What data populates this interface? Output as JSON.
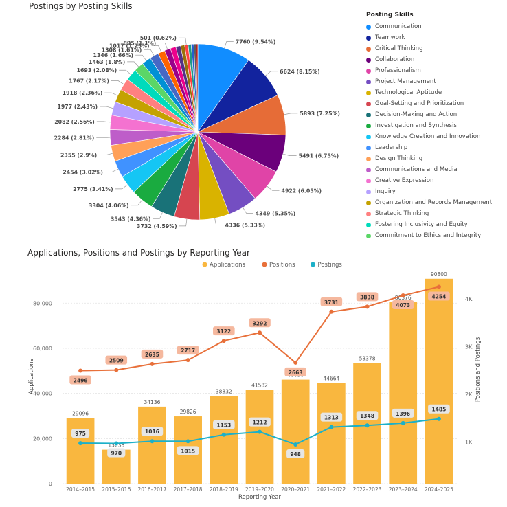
{
  "pie_title": "Postings by Posting Skills",
  "combo_title": "Applications, Positions and Postings by Reporting Year",
  "legend_title": "Posting Skills",
  "chart_data": [
    {
      "type": "pie",
      "title": "Postings by Posting Skills",
      "legend_title": "Posting Skills",
      "slices": [
        {
          "label": "Communication",
          "value": 7760,
          "display": "7760 (9.54%)",
          "color": "#118DFF"
        },
        {
          "label": "Teamwork",
          "value": 6624,
          "display": "6624 (8.15%)",
          "color": "#12239E"
        },
        {
          "label": "Critical Thinking",
          "value": 5893,
          "display": "5893 (7.25%)",
          "color": "#E66C37"
        },
        {
          "label": "Collaboration",
          "value": 5491,
          "display": "5491 (6.75%)",
          "color": "#6B007B"
        },
        {
          "label": "Professionalism",
          "value": 4922,
          "display": "4922 (6.05%)",
          "color": "#E044A7"
        },
        {
          "label": "Project Management",
          "value": 4349,
          "display": "4349 (5.35%)",
          "color": "#744EC2"
        },
        {
          "label": "Technological Aptitude",
          "value": 4336,
          "display": "4336 (5.33%)",
          "color": "#D9B300"
        },
        {
          "label": "Goal-Setting and Prioritization",
          "value": 3732,
          "display": "3732 (4.59%)",
          "color": "#D64550"
        },
        {
          "label": "Decision-Making and Action",
          "value": 3543,
          "display": "3543 (4.36%)",
          "color": "#197278"
        },
        {
          "label": "Investigation and Synthesis",
          "value": 3304,
          "display": "3304 (4.06%)",
          "color": "#1AAB40"
        },
        {
          "label": "Knowledge Creation and Innovation",
          "value": 2775,
          "display": "2775 (3.41%)",
          "color": "#15C6F4"
        },
        {
          "label": "Leadership",
          "value": 2454,
          "display": "2454 (3.02%)",
          "color": "#4092FF"
        },
        {
          "label": "Design Thinking",
          "value": 2355,
          "display": "2355 (2.9%)",
          "color": "#FFA058"
        },
        {
          "label": "Communications and Media",
          "value": 2284,
          "display": "2284 (2.81%)",
          "color": "#BE5DC9"
        },
        {
          "label": "Creative Expression",
          "value": 2082,
          "display": "2082 (2.56%)",
          "color": "#F472D0"
        },
        {
          "label": "Inquiry",
          "value": 1977,
          "display": "1977 (2.43%)",
          "color": "#B5A1FF"
        },
        {
          "label": "Organization and Records Management",
          "value": 1918,
          "display": "1918 (2.36%)",
          "color": "#C4A200"
        },
        {
          "label": "Strategic Thinking",
          "value": 1767,
          "display": "1767 (2.17%)",
          "color": "#FF8080"
        },
        {
          "label": "Fostering Inclusivity and Equity",
          "value": 1693,
          "display": "1693 (2.08%)",
          "color": "#00DBBC"
        },
        {
          "label": "Commitment to Ethics and Integrity",
          "value": 1463,
          "display": "1463 (1.8%)",
          "color": "#5BD667"
        },
        {
          "label": "",
          "value": 1346,
          "display": "1346 (1.66%)",
          "color": "#0091D5"
        },
        {
          "label": "",
          "value": 1308,
          "display": "1308 (1.61%)",
          "color": "#4668C5"
        },
        {
          "label": "",
          "value": 1017,
          "display": "1017 (1.25%)",
          "color": "#FF6300"
        },
        {
          "label": "",
          "value": 895,
          "display": "895 (1.1%)",
          "color": "#99008A"
        },
        {
          "label": "",
          "value": 800,
          "display": "",
          "color": "#EC008C"
        },
        {
          "label": "",
          "value": 700,
          "display": "",
          "color": "#533285"
        },
        {
          "label": "",
          "value": 600,
          "display": "",
          "color": "#99700A"
        },
        {
          "label": "",
          "value": 501,
          "display": "501 (0.62%)",
          "color": "#FF4141"
        },
        {
          "label": "",
          "value": 450,
          "display": "",
          "color": "#1F9A85"
        },
        {
          "label": "",
          "value": 380,
          "display": "",
          "color": "#255DCD"
        },
        {
          "label": "",
          "value": 320,
          "display": "",
          "color": "#5C5C5C"
        },
        {
          "label": "",
          "value": 260,
          "display": "",
          "color": "#B22222"
        }
      ]
    },
    {
      "type": "bar+line",
      "title": "Applications, Positions and Postings by Reporting Year",
      "xlabel": "Reporting Year",
      "ylabel": "Applications",
      "y2label": "Positions and Postings",
      "categories": [
        "2014–2015",
        "2015–2016",
        "2016–2017",
        "2017–2018",
        "2018–2019",
        "2019–2020",
        "2020–2021",
        "2021–2022",
        "2022–2023",
        "2023–2024",
        "2024–2025"
      ],
      "ylim": [
        0,
        95000
      ],
      "yticks": [
        0,
        20000,
        40000,
        60000,
        80000
      ],
      "ytick_labels": [
        "0",
        "20,000",
        "40,000",
        "60,000",
        "80,000"
      ],
      "y2lim": [
        126.3,
        4621.3
      ],
      "y2ticks": [
        1000,
        2000,
        3000,
        4000
      ],
      "y2tick_labels": [
        "1K",
        "2K",
        "3K",
        "4K"
      ],
      "legend_placement": "top-center",
      "grid": true,
      "series": [
        {
          "name": "Applications",
          "type": "bar",
          "axis": "left",
          "color": "#F9B73F",
          "values": [
            29096,
            15038,
            34136,
            29826,
            38832,
            41582,
            46098,
            44664,
            53378,
            80376,
            90800
          ]
        },
        {
          "name": "Positions",
          "type": "line",
          "axis": "right",
          "color": "#E8703A",
          "values": [
            2496,
            2509,
            2635,
            2717,
            3122,
            3292,
            2663,
            3731,
            3838,
            4073,
            4254
          ]
        },
        {
          "name": "Postings",
          "type": "line",
          "axis": "right",
          "color": "#1CB0C8",
          "values": [
            975,
            970,
            1016,
            1015,
            1153,
            1212,
            948,
            1313,
            1348,
            1396,
            1485
          ]
        }
      ]
    }
  ]
}
